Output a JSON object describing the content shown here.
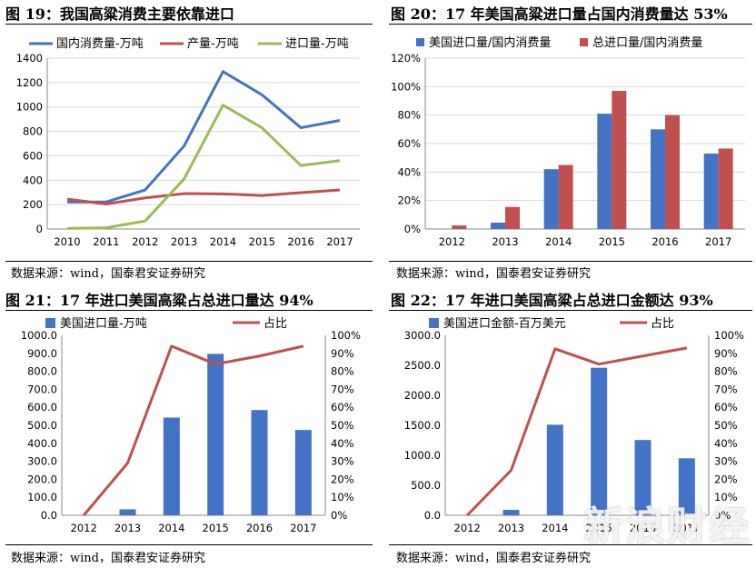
{
  "figures": [
    {
      "title": "图 19：我国高粱消费主要依靠进口",
      "source": "数据来源：wind，国泰君安证券研究"
    },
    {
      "title": "图 20：17 年美国高粱进口量占国内消费量达 53%",
      "source": "数据来源：wind，国泰君安证券研究"
    },
    {
      "title": "图 21：17 年进口美国高粱占总进口量达 94%",
      "source": "数据来源：wind，国泰君安证券研究"
    },
    {
      "title": "图 22：17 年进口美国高粱占总进口金额达 93%",
      "source": "数据来源：wind，国泰君安证券研究"
    }
  ],
  "chart_data": [
    {
      "type": "line",
      "title": "我国高粱消费主要依靠进口",
      "x": [
        "2010",
        "2011",
        "2012",
        "2013",
        "2014",
        "2015",
        "2016",
        "2017"
      ],
      "ylim": [
        0,
        1400
      ],
      "yticks": [
        "0",
        "200",
        "400",
        "600",
        "800",
        "1000",
        "1200",
        "1400"
      ],
      "legend_position": "top",
      "grid": "horizontal",
      "series": [
        {
          "name": "国内消费量-万吨",
          "color": "#4472C4",
          "values": [
            222,
            222,
            320,
            680,
            1290,
            1100,
            830,
            890
          ]
        },
        {
          "name": "产量-万吨",
          "color": "#C0504D",
          "values": [
            245,
            205,
            255,
            290,
            288,
            275,
            298,
            320
          ]
        },
        {
          "name": "进口量-万吨",
          "color": "#9BBB59",
          "values": [
            5,
            10,
            65,
            410,
            1015,
            830,
            520,
            560
          ]
        }
      ]
    },
    {
      "type": "bar",
      "title": "17 年美国高粱进口量占国内消费量达 53%",
      "categories": [
        "2012",
        "2013",
        "2014",
        "2015",
        "2016",
        "2017"
      ],
      "ylim": [
        0,
        120
      ],
      "yticks": [
        "0%",
        "20%",
        "40%",
        "60%",
        "80%",
        "100%",
        "120%"
      ],
      "legend_position": "top",
      "grid": "horizontal",
      "series": [
        {
          "name": "美国进口量/国内消费量",
          "color": "#4472C4",
          "values": [
            0,
            4.5,
            42,
            81,
            70,
            53
          ]
        },
        {
          "name": "总进口量/国内消费量",
          "color": "#C0504D",
          "values": [
            2.5,
            15.5,
            45,
            97,
            80,
            56.5
          ]
        }
      ]
    },
    {
      "type": "bar+line",
      "title": "17 年进口美国高粱占总进口量达 94%",
      "categories": [
        "2012",
        "2013",
        "2014",
        "2015",
        "2016",
        "2017"
      ],
      "ylim_left": [
        0,
        1000
      ],
      "yticks_left": [
        "0.0",
        "100.0",
        "200.0",
        "300.0",
        "400.0",
        "500.0",
        "600.0",
        "700.0",
        "800.0",
        "900.0",
        "1000.0"
      ],
      "ylim_right": [
        0,
        100
      ],
      "yticks_right": [
        "0%",
        "10%",
        "20%",
        "30%",
        "40%",
        "50%",
        "60%",
        "70%",
        "80%",
        "90%",
        "100%"
      ],
      "legend_position": "top",
      "series": [
        {
          "name": "美国进口量-万吨",
          "kind": "bar",
          "axis": "left",
          "color": "#4472C4",
          "values": [
            0,
            33,
            543,
            897,
            585,
            474
          ]
        },
        {
          "name": "占比",
          "kind": "line",
          "axis": "right",
          "color": "#C0504D",
          "values": [
            0,
            29,
            94,
            84,
            88.5,
            94
          ]
        }
      ]
    },
    {
      "type": "bar+line",
      "title": "17 年进口美国高粱占总进口金额达 93%",
      "categories": [
        "2012",
        "2013",
        "2014",
        "2015",
        "2016",
        "2017"
      ],
      "ylim_left": [
        0,
        3000
      ],
      "yticks_left": [
        "0.0",
        "500.0",
        "1000.0",
        "1500.0",
        "2000.0",
        "2500.0",
        "3000.0"
      ],
      "ylim_right": [
        0,
        100
      ],
      "yticks_right": [
        "0%",
        "10%",
        "20%",
        "30%",
        "40%",
        "50%",
        "60%",
        "70%",
        "80%",
        "90%",
        "100%"
      ],
      "legend_position": "top",
      "series": [
        {
          "name": "美国进口金额-百万美元",
          "kind": "bar",
          "axis": "left",
          "color": "#4472C4",
          "values": [
            0,
            90,
            1510,
            2460,
            1255,
            950
          ]
        },
        {
          "name": "占比",
          "kind": "line",
          "axis": "right",
          "color": "#C0504D",
          "values": [
            0,
            25,
            92.5,
            84,
            88.5,
            93
          ]
        }
      ]
    }
  ],
  "watermark": "新浪财经"
}
